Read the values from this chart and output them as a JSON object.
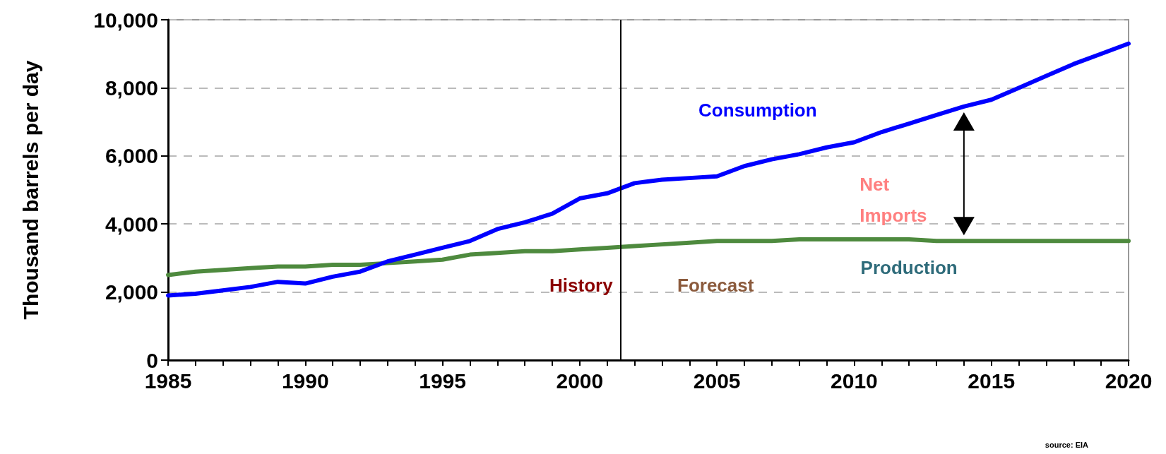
{
  "chart_data": {
    "type": "line",
    "ylabel": "Thousand barrels per day",
    "x": [
      1985,
      1986,
      1987,
      1988,
      1989,
      1990,
      1991,
      1992,
      1993,
      1994,
      1995,
      1996,
      1997,
      1998,
      1999,
      2000,
      2001,
      2002,
      2003,
      2004,
      2005,
      2006,
      2007,
      2008,
      2009,
      2010,
      2011,
      2012,
      2013,
      2014,
      2015,
      2016,
      2017,
      2018,
      2019,
      2020
    ],
    "series": [
      {
        "name": "Consumption",
        "color": "#0000ff",
        "values": [
          1900,
          1950,
          2050,
          2150,
          2300,
          2250,
          2450,
          2600,
          2900,
          3100,
          3300,
          3500,
          3850,
          4050,
          4300,
          4750,
          4900,
          5200,
          5300,
          5350,
          5400,
          5700,
          5900,
          6050,
          6250,
          6400,
          6700,
          6950,
          7200,
          7450,
          7650,
          8000,
          8350,
          8700,
          9000,
          9300
        ]
      },
      {
        "name": "Production",
        "color": "#4e8a3e",
        "values": [
          2500,
          2600,
          2650,
          2700,
          2750,
          2750,
          2800,
          2800,
          2850,
          2900,
          2950,
          3100,
          3150,
          3200,
          3200,
          3250,
          3300,
          3350,
          3400,
          3450,
          3500,
          3500,
          3500,
          3550,
          3550,
          3550,
          3550,
          3550,
          3500,
          3500,
          3500,
          3500,
          3500,
          3500,
          3500,
          3500
        ]
      }
    ],
    "xlim": [
      1985,
      2020
    ],
    "xticks": [
      1985,
      {
        "value": 1986,
        "label": null
      },
      {
        "value": 1987,
        "label": null
      },
      {
        "value": 1988,
        "label": null
      },
      {
        "value": 1989,
        "label": null
      },
      1990,
      {
        "value": 1991,
        "label": null
      },
      {
        "value": 1992,
        "label": null
      },
      {
        "value": 1993,
        "label": null
      },
      {
        "value": 1994,
        "label": null
      },
      1995,
      {
        "value": 1996,
        "label": null
      },
      {
        "value": 1997,
        "label": null
      },
      {
        "value": 1998,
        "label": null
      },
      {
        "value": 1999,
        "label": null
      },
      2000,
      {
        "value": 2001,
        "label": null
      },
      {
        "value": 2002,
        "label": null
      },
      {
        "value": 2003,
        "label": null
      },
      {
        "value": 2004,
        "label": null
      },
      2005,
      {
        "value": 2006,
        "label": null
      },
      {
        "value": 2007,
        "label": null
      },
      {
        "value": 2008,
        "label": null
      },
      {
        "value": 2009,
        "label": null
      },
      2010,
      {
        "value": 2011,
        "label": null
      },
      {
        "value": 2012,
        "label": null
      },
      {
        "value": 2013,
        "label": null
      },
      {
        "value": 2014,
        "label": null
      },
      2015,
      {
        "value": 2016,
        "label": null
      },
      {
        "value": 2017,
        "label": null
      },
      {
        "value": 2018,
        "label": null
      },
      {
        "value": 2019,
        "label": null
      },
      2020
    ],
    "ylim": [
      0,
      10000
    ],
    "yticks": [
      0,
      {
        "value": 2000,
        "label": "2,000"
      },
      {
        "value": 4000,
        "label": "4,000"
      },
      {
        "value": 6000,
        "label": "6,000"
      },
      {
        "value": 8000,
        "label": "8,000"
      },
      {
        "value": 10000,
        "label": "10,000"
      }
    ],
    "grid": "y",
    "legend": false,
    "marker": "none",
    "line_style": "solid",
    "ref_lines": [
      {
        "axis": "x",
        "value": 2001.5,
        "color": "#000000"
      }
    ],
    "annotations": [
      "History",
      "Forecast",
      "Net Imports",
      "source: EIA"
    ]
  }
}
